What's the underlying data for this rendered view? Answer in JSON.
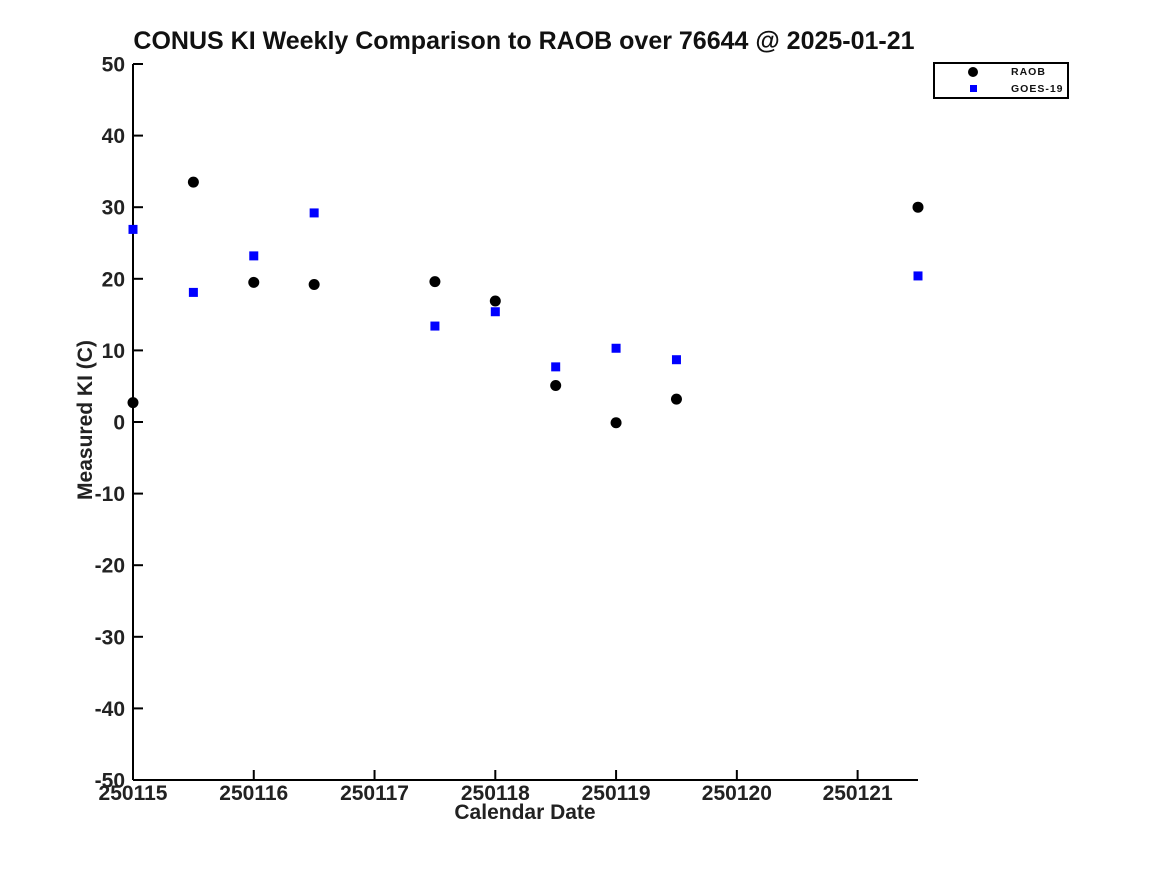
{
  "page": {
    "background": "#ffffff"
  },
  "chart_data": {
    "type": "scatter",
    "title": "CONUS KI Weekly Comparison to RAOB over 76644 @ 2025-01-21",
    "xlabel": "Calendar Date",
    "ylabel": "Measured KI (C)",
    "xlim": [
      250115,
      250121.5
    ],
    "ylim": [
      -50,
      50
    ],
    "xticks": [
      250115,
      250116,
      250117,
      250118,
      250119,
      250120,
      250121
    ],
    "yticks": [
      50,
      40,
      30,
      20,
      10,
      0,
      -10,
      -20,
      -30,
      -40,
      -50
    ],
    "grid": false,
    "axis_color": "#000000",
    "legend_position": "outside-top-right",
    "x": [
      250115,
      250115.5,
      250116,
      250116.5,
      250117.5,
      250118,
      250118.5,
      250119,
      250119.5,
      250121.5
    ],
    "series": [
      {
        "name": "RAOB",
        "marker": "circle",
        "color": "#000000",
        "values": [
          2.7,
          33.5,
          19.5,
          19.2,
          19.6,
          16.9,
          5.1,
          -0.1,
          3.2,
          30.0
        ]
      },
      {
        "name": "GOES-19",
        "marker": "square",
        "color": "#0000ff",
        "values": [
          26.9,
          18.1,
          23.2,
          29.2,
          13.4,
          15.4,
          7.7,
          10.3,
          8.7,
          20.4
        ]
      }
    ]
  }
}
